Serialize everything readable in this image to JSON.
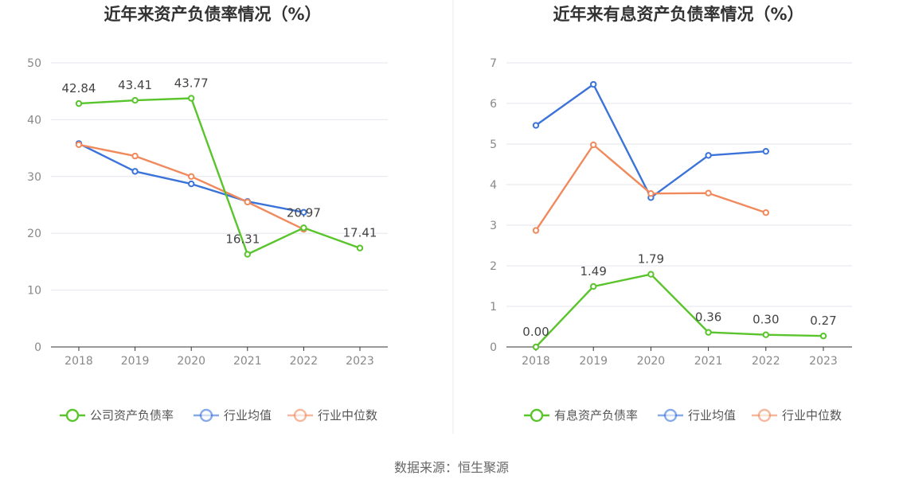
{
  "chart_data": [
    {
      "type": "line",
      "title": "近年来资产负债率情况（%）",
      "categories": [
        "2018",
        "2019",
        "2020",
        "2021",
        "2022",
        "2023"
      ],
      "ylim": [
        0,
        50
      ],
      "yticks": [
        0,
        10,
        20,
        30,
        40,
        50
      ],
      "grid": true,
      "legend_position": "bottom",
      "series": [
        {
          "name": "公司资产负债率",
          "color": "#5ac42c",
          "values": [
            42.84,
            43.41,
            43.77,
            16.31,
            20.97,
            17.41
          ],
          "labels": [
            "42.84",
            "43.41",
            "43.77",
            "16.31",
            "20.97",
            "17.41"
          ]
        },
        {
          "name": "行业均值",
          "color": "#3b73d9",
          "values": [
            35.8,
            30.9,
            28.7,
            25.6,
            23.7,
            null
          ]
        },
        {
          "name": "行业中位数",
          "color": "#f08a5d",
          "values": [
            35.6,
            33.6,
            30.0,
            25.5,
            20.7,
            null
          ]
        }
      ]
    },
    {
      "type": "line",
      "title": "近年来有息资产负债率情况（%）",
      "categories": [
        "2018",
        "2019",
        "2020",
        "2021",
        "2022",
        "2023"
      ],
      "ylim": [
        0,
        7
      ],
      "yticks": [
        0,
        1,
        2,
        3,
        4,
        5,
        6,
        7
      ],
      "grid": true,
      "legend_position": "bottom",
      "series": [
        {
          "name": "有息资产负债率",
          "color": "#5ac42c",
          "values": [
            0.0,
            1.49,
            1.79,
            0.36,
            0.3,
            0.27
          ],
          "labels": [
            "0.00",
            "1.49",
            "1.79",
            "0.36",
            "0.30",
            "0.27"
          ]
        },
        {
          "name": "行业均值",
          "color": "#3b73d9",
          "values": [
            5.46,
            6.47,
            3.68,
            4.72,
            4.82,
            null
          ]
        },
        {
          "name": "行业中位数",
          "color": "#f08a5d",
          "values": [
            2.87,
            4.98,
            3.78,
            3.79,
            3.31,
            null
          ]
        }
      ]
    }
  ],
  "footer": {
    "source": "数据来源：恒生聚源"
  }
}
